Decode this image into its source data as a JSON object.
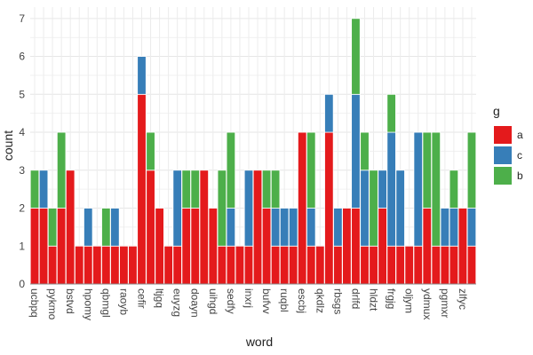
{
  "chart_data": {
    "type": "bar",
    "stacked": true,
    "xlabel": "word",
    "ylabel": "count",
    "ylim": [
      0,
      7.3
    ],
    "yticks": [
      0,
      1,
      2,
      3,
      4,
      5,
      6,
      7
    ],
    "grid": true,
    "legend": {
      "title": "g",
      "position": "right"
    },
    "colors": {
      "a": "#e41a1c",
      "c": "#377eb8",
      "b": "#4daf4a"
    },
    "categories": [
      "ucbpq",
      "",
      "pykmo",
      "",
      "bstvd",
      "",
      "hpomy",
      "",
      "qbmgl",
      "",
      "raoyb",
      "",
      "cefir",
      "",
      "ltjgq",
      "",
      "euyzg",
      "",
      "doayn",
      "",
      "uihgd",
      "",
      "sedfy",
      "",
      "inxrj",
      "",
      "bufvv",
      "",
      "ruqbl",
      "",
      "escbj",
      "",
      "qkdlz",
      "",
      "rbsgs",
      "",
      "drlfd",
      "",
      "hldzt",
      "",
      "frgjg",
      "",
      "oljym",
      "",
      "ydmux",
      "",
      "pgmxr",
      "",
      "zlfyc",
      ""
    ],
    "series": [
      {
        "name": "a",
        "values": [
          2,
          2,
          1,
          2,
          3,
          1,
          1,
          1,
          1,
          1,
          1,
          1,
          5,
          3,
          2,
          1,
          1,
          2,
          2,
          3,
          2,
          1,
          1,
          1,
          1,
          3,
          2,
          1,
          1,
          1,
          4,
          1,
          1,
          4,
          1,
          2,
          2,
          1,
          1,
          2,
          1,
          1,
          1,
          1,
          2,
          1,
          1,
          1,
          2,
          1
        ]
      },
      {
        "name": "c",
        "values": [
          0,
          1,
          0,
          0,
          0,
          0,
          1,
          0,
          0,
          1,
          0,
          0,
          1,
          0,
          0,
          0,
          2,
          0,
          0,
          0,
          0,
          0,
          1,
          0,
          2,
          0,
          0,
          1,
          1,
          1,
          0,
          1,
          0,
          1,
          1,
          0,
          3,
          2,
          0,
          1,
          3,
          2,
          0,
          3,
          0,
          0,
          1,
          1,
          0,
          1
        ]
      },
      {
        "name": "b",
        "values": [
          1,
          0,
          1,
          2,
          0,
          0,
          0,
          0,
          1,
          0,
          0,
          0,
          0,
          1,
          0,
          0,
          0,
          1,
          1,
          0,
          0,
          2,
          2,
          0,
          0,
          0,
          1,
          1,
          0,
          0,
          0,
          2,
          0,
          0,
          0,
          0,
          2,
          1,
          2,
          0,
          1,
          0,
          0,
          0,
          2,
          3,
          0,
          1,
          0,
          2
        ]
      }
    ]
  }
}
